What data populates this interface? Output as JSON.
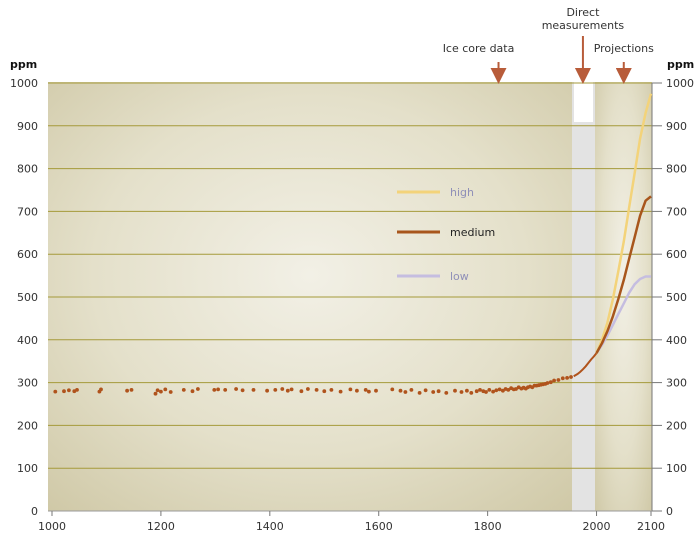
{
  "chart_data": {
    "type": "line",
    "ylabel_left": "ppm",
    "ylabel_right": "ppm",
    "ylim": [
      0,
      1000
    ],
    "yticks": [
      0,
      100,
      200,
      300,
      400,
      500,
      600,
      700,
      800,
      900,
      1000
    ],
    "xlim": [
      1000,
      2100
    ],
    "xticks": [
      1000,
      1200,
      1400,
      1600,
      1800,
      2000,
      2100
    ],
    "grid": true,
    "annotations": [
      {
        "label": "Ice core data",
        "x": 1820
      },
      {
        "label": "Direct\nmeasurements",
        "x": 1975
      },
      {
        "label": "Projections",
        "x": 2050
      }
    ],
    "legend": {
      "placement": "center-right",
      "entries": [
        {
          "name": "high",
          "color": "#f3d37a",
          "text_color": "#8f8fb8"
        },
        {
          "name": "medium",
          "color": "#a8561c",
          "text_color": "#222222"
        },
        {
          "name": "low",
          "color": "#c5bde0",
          "text_color": "#8f8fb8"
        }
      ]
    },
    "colors": {
      "ice_core_points": "#b0531c",
      "panel_bg": "#dcd7be",
      "gridline": "#a59a3a",
      "direct_band": "#e3e3e3",
      "arrow": "#b85c3a"
    },
    "ice_core": {
      "x": [
        1006,
        1022,
        1031,
        1041,
        1046,
        1087,
        1090,
        1138,
        1146,
        1190,
        1194,
        1200,
        1208,
        1218,
        1242,
        1258,
        1268,
        1298,
        1305,
        1318,
        1338,
        1350,
        1370,
        1395,
        1410,
        1423,
        1433,
        1440,
        1458,
        1470,
        1486,
        1500,
        1513,
        1530,
        1548,
        1560,
        1576,
        1582,
        1595,
        1625,
        1640,
        1649,
        1660,
        1675,
        1686,
        1700,
        1710,
        1724,
        1740,
        1752,
        1762,
        1770,
        1780,
        1786,
        1792,
        1797,
        1803,
        1810,
        1816,
        1822,
        1828,
        1833,
        1838,
        1843,
        1848,
        1852,
        1857,
        1862,
        1866,
        1870,
        1874,
        1878,
        1882,
        1886,
        1890,
        1894,
        1898,
        1902,
        1906,
        1910,
        1916,
        1922,
        1930,
        1938,
        1946,
        1953
      ],
      "y": [
        279,
        280,
        282,
        280,
        283,
        279,
        284,
        281,
        283,
        274,
        282,
        279,
        284,
        278,
        283,
        280,
        285,
        283,
        284,
        283,
        285,
        282,
        283,
        281,
        283,
        285,
        281,
        284,
        280,
        285,
        283,
        280,
        283,
        279,
        284,
        281,
        283,
        279,
        281,
        284,
        281,
        278,
        283,
        276,
        282,
        278,
        280,
        276,
        281,
        278,
        281,
        276,
        280,
        283,
        280,
        278,
        283,
        279,
        282,
        284,
        281,
        285,
        283,
        287,
        284,
        285,
        289,
        286,
        288,
        286,
        289,
        291,
        289,
        293,
        293,
        294,
        295,
        296,
        297,
        299,
        301,
        305,
        306,
        310,
        311,
        313
      ]
    },
    "direct": {
      "x": [
        1958,
        1965,
        1970,
        1975,
        1980,
        1985,
        1990,
        1995,
        2000
      ],
      "y": [
        315,
        320,
        325,
        331,
        338,
        346,
        354,
        361,
        369
      ]
    },
    "series": [
      {
        "name": "high",
        "x": [
          2000,
          2010,
          2020,
          2030,
          2040,
          2050,
          2060,
          2070,
          2080,
          2090,
          2100
        ],
        "values": [
          369,
          400,
          440,
          495,
          560,
          630,
          710,
          790,
          870,
          930,
          975
        ]
      },
      {
        "name": "medium",
        "x": [
          2000,
          2010,
          2020,
          2030,
          2040,
          2050,
          2060,
          2070,
          2080,
          2090,
          2100
        ],
        "values": [
          369,
          392,
          420,
          455,
          495,
          540,
          590,
          640,
          690,
          725,
          735
        ]
      },
      {
        "name": "low",
        "x": [
          2000,
          2010,
          2020,
          2030,
          2040,
          2050,
          2060,
          2070,
          2080,
          2090,
          2100
        ],
        "values": [
          369,
          388,
          410,
          435,
          460,
          485,
          510,
          530,
          542,
          548,
          548
        ]
      }
    ]
  }
}
